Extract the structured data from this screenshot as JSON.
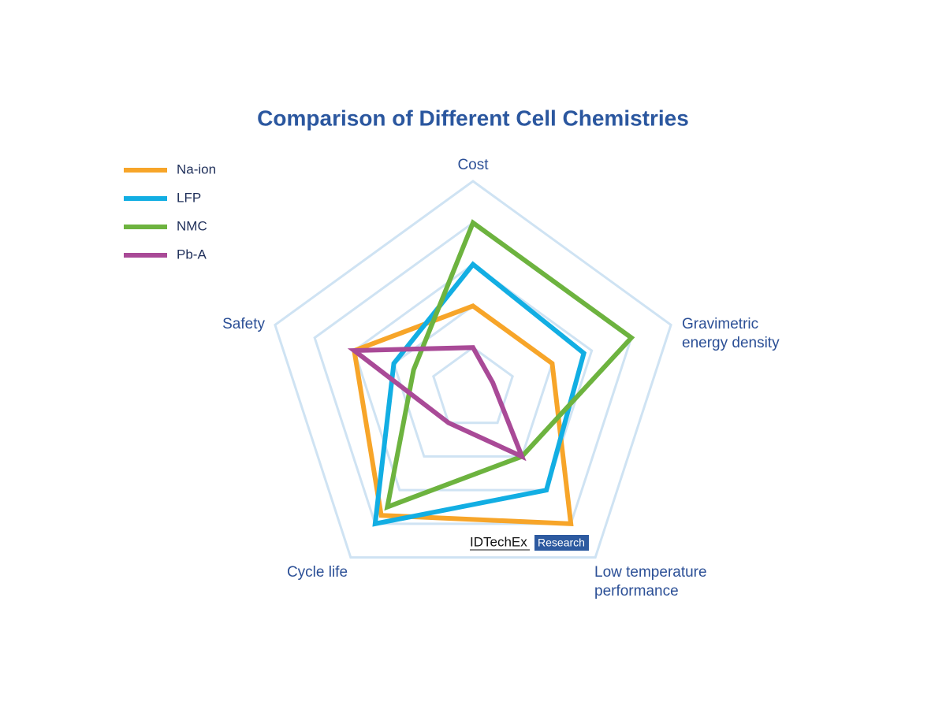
{
  "chart_data": {
    "type": "radar",
    "title": "Comparison of Different Cell Chemistries",
    "categories": [
      "Cost",
      "Gravimetric energy density",
      "Low temperature performance",
      "Cycle life",
      "Safety"
    ],
    "rlim": [
      0,
      5
    ],
    "rticks": [
      1,
      2,
      3,
      4,
      5
    ],
    "grid": true,
    "legend": "upper left",
    "series": [
      {
        "name": "Na-ion",
        "color": "#f7a529",
        "values": [
          2,
          2,
          4,
          3.75,
          3
        ]
      },
      {
        "name": "LFP",
        "color": "#12aee3",
        "values": [
          3,
          2.8,
          3,
          4,
          2
        ]
      },
      {
        "name": "NMC",
        "color": "#6db33f",
        "values": [
          4,
          4,
          2,
          3.5,
          1.5
        ]
      },
      {
        "name": "Pb-A",
        "color": "#a94a97",
        "values": [
          1,
          0.5,
          2,
          1,
          3
        ]
      }
    ],
    "watermark": {
      "brand": "IDTechEx",
      "tag": "Research"
    }
  }
}
